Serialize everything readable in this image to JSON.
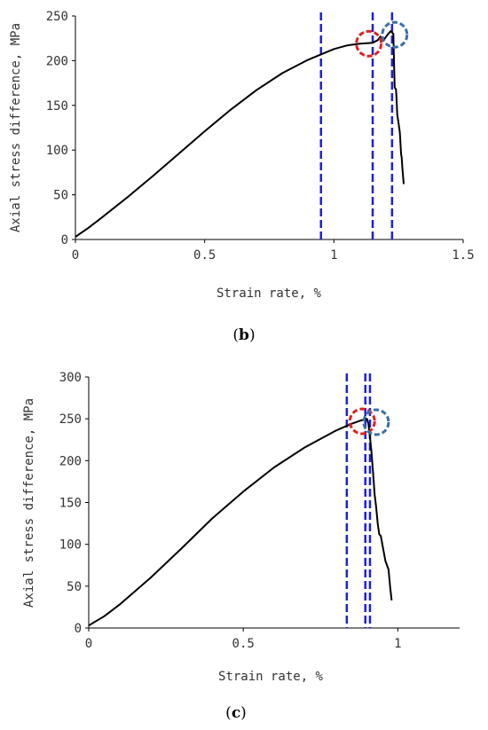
{
  "chart_data": [
    {
      "type": "line",
      "panel_label": "b",
      "xlabel": "Strain rate, %",
      "ylabel": "Axial stress difference, MPa",
      "xlim": [
        0,
        1.5
      ],
      "ylim": [
        0,
        250
      ],
      "x_ticks": [
        0,
        0.5,
        1,
        1.5
      ],
      "x_tick_labels": [
        "0",
        "0.5",
        "1",
        "1.5"
      ],
      "y_ticks": [
        0,
        50,
        100,
        150,
        200,
        250
      ],
      "y_tick_labels": [
        "0",
        "50",
        "100",
        "150",
        "200",
        "250"
      ],
      "grid": false,
      "series": [
        {
          "x": [
            0,
            0.05,
            0.1,
            0.2,
            0.3,
            0.4,
            0.5,
            0.6,
            0.7,
            0.8,
            0.9,
            1.0,
            1.05,
            1.1,
            1.15,
            1.17,
            1.18,
            1.19,
            1.2,
            1.21,
            1.22,
            1.23,
            1.235,
            1.24,
            1.242,
            1.245,
            1.25,
            1.255,
            1.26,
            1.262,
            1.265,
            1.27
          ],
          "y": [
            3,
            13,
            24,
            47,
            71,
            96,
            121,
            145,
            167,
            186,
            201,
            213,
            217,
            219,
            220,
            223,
            227,
            222,
            226,
            230,
            233,
            230,
            170,
            168,
            160,
            140,
            130,
            120,
            95,
            92,
            80,
            62
          ]
        }
      ],
      "vlines": [
        0.95,
        1.15,
        1.225
      ],
      "vline_color": "#1f1fd6",
      "circles": [
        {
          "x": 1.135,
          "y": 219,
          "color": "#e02020"
        },
        {
          "x": 1.235,
          "y": 229,
          "color": "#3a6ea5"
        }
      ]
    },
    {
      "type": "line",
      "panel_label": "c",
      "xlabel": "Strain rate, %",
      "ylabel": "Axial stress difference, MPa",
      "xlim": [
        0,
        1.2
      ],
      "ylim": [
        0,
        300
      ],
      "x_ticks": [
        0,
        0.5,
        1
      ],
      "x_tick_labels": [
        "0",
        "0.5",
        "1"
      ],
      "y_ticks": [
        0,
        50,
        100,
        150,
        200,
        250,
        300
      ],
      "y_tick_labels": [
        "0",
        "50",
        "100",
        "150",
        "200",
        "250",
        "300"
      ],
      "grid": false,
      "series": [
        {
          "x": [
            0,
            0.05,
            0.1,
            0.2,
            0.3,
            0.4,
            0.5,
            0.6,
            0.7,
            0.8,
            0.85,
            0.88,
            0.9,
            0.905,
            0.91,
            0.915,
            0.92,
            0.925,
            0.93,
            0.935,
            0.94,
            0.945,
            0.95,
            0.96,
            0.97,
            0.975,
            0.98
          ],
          "y": [
            3,
            14,
            28,
            60,
            95,
            131,
            163,
            192,
            216,
            236,
            244,
            248,
            250,
            244,
            228,
            210,
            185,
            160,
            145,
            125,
            112,
            110,
            100,
            80,
            70,
            50,
            33
          ]
        }
      ],
      "vlines": [
        0.835,
        0.895,
        0.91
      ],
      "vline_color": "#1f1fd6",
      "circles": [
        {
          "x": 0.885,
          "y": 247,
          "color": "#e02020"
        },
        {
          "x": 0.93,
          "y": 246,
          "color": "#3a6ea5"
        }
      ]
    }
  ]
}
